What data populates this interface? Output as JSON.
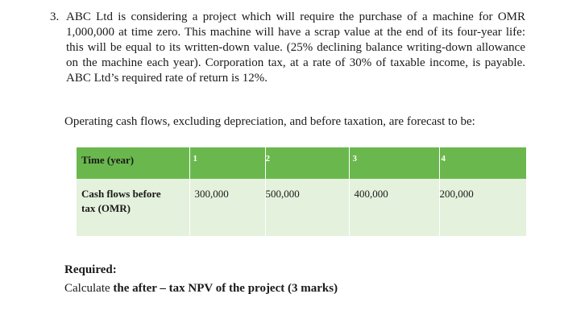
{
  "question": {
    "number": "3.",
    "text": "ABC Ltd is considering a project which will require the purchase of a machine for OMR 1,000,000 at time zero. This machine will have a scrap value at the end of its four-year life: this will be equal to its written-down value. (25% declining balance writing-down allowance on the machine each year). Corporation tax, at a rate of 30% of taxable income, is payable. ABC Ltd’s required rate of return is 12%.",
    "intro": "Operating cash flows, excluding depreciation, and before taxation, are forecast to be:"
  },
  "table": {
    "header_label": "Time (year)",
    "years": [
      "1",
      "2",
      "3",
      "4"
    ],
    "row_label_line1": "Cash flows before",
    "row_label_line2": "tax (OMR)",
    "values": [
      "300,000",
      "500,000",
      "400,000",
      "200,000"
    ]
  },
  "required": {
    "heading": "Required:",
    "instruction_prefix": "Calculate ",
    "instruction_bold": "the after – tax NPV of the project (3 marks)"
  },
  "colors": {
    "header_green": "#6ab84d",
    "row_light_green": "#e4f1dc"
  }
}
